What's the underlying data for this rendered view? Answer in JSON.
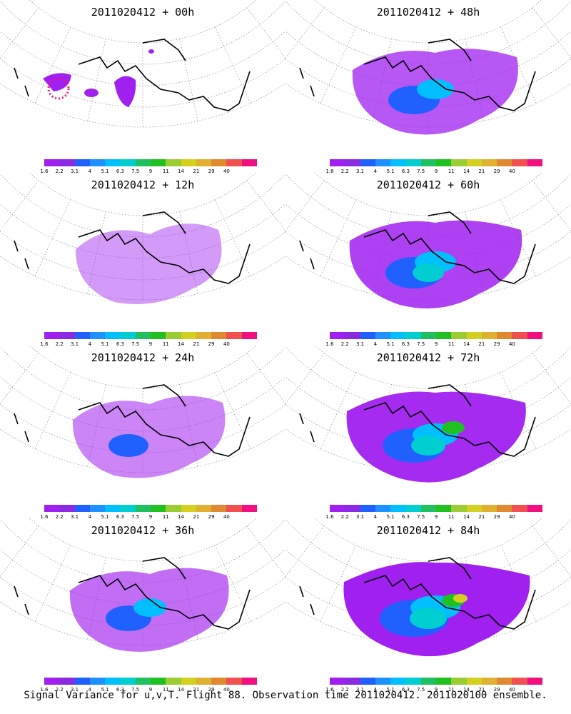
{
  "panels": [
    {
      "title": "2011020412 + 00h",
      "level": 0
    },
    {
      "title": "2011020412 + 48h",
      "level": 4
    },
    {
      "title": "2011020412 + 12h",
      "level": 1
    },
    {
      "title": "2011020412 + 60h",
      "level": 5
    },
    {
      "title": "2011020412 + 24h",
      "level": 2
    },
    {
      "title": "2011020412 + 72h",
      "level": 6
    },
    {
      "title": "2011020412 + 36h",
      "level": 3
    },
    {
      "title": "2011020412 + 84h",
      "level": 7
    }
  ],
  "colorbar": {
    "labels": [
      "1.6",
      "2.2",
      "3.1",
      "4",
      "5.1",
      "6.3",
      "7.5",
      "9",
      "11",
      "14",
      "21",
      "29",
      "40"
    ],
    "colors": [
      "#a020f0",
      "#8a2be2",
      "#2060ff",
      "#1e90ff",
      "#00bfff",
      "#00ced1",
      "#20c060",
      "#20c020",
      "#9acd32",
      "#d4d020",
      "#e0b030",
      "#e08a30",
      "#f05050",
      "#f01080"
    ]
  },
  "caption": "Signal Variance for u,v,T. Flight 88. Observation time 2011020412. 2011020100 ensemble."
}
